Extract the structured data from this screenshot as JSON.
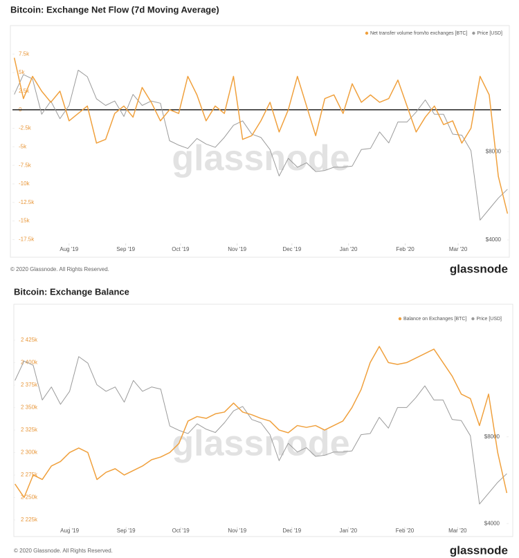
{
  "chart_data": [
    {
      "type": "line",
      "title": "Bitcoin: Exchange Net Flow (7d Moving Average)",
      "watermark": "glassnode",
      "footer": "© 2020 Glassnode. All Rights Reserved.",
      "logo": "glassnode",
      "x": [
        1,
        6,
        11,
        16,
        21,
        26,
        31,
        36,
        41,
        46,
        51,
        56,
        61,
        66,
        71,
        76,
        81,
        86,
        91,
        96,
        101,
        106,
        111,
        116,
        121,
        126,
        131,
        136,
        141,
        146,
        151,
        156,
        161,
        166,
        171,
        176,
        181,
        186,
        191,
        196,
        201,
        206,
        211,
        216,
        221,
        226,
        231,
        236,
        241,
        246,
        251,
        256,
        261,
        266,
        271
      ],
      "xlim": [
        0,
        272
      ],
      "xticks": [
        {
          "value": 31,
          "label": "Aug '19"
        },
        {
          "value": 62,
          "label": "Sep '19"
        },
        {
          "value": 92,
          "label": "Oct '19"
        },
        {
          "value": 123,
          "label": "Nov '19"
        },
        {
          "value": 153,
          "label": "Dec '19"
        },
        {
          "value": 184,
          "label": "Jan '20"
        },
        {
          "value": 215,
          "label": "Feb '20"
        },
        {
          "value": 244,
          "label": "Mar '20"
        }
      ],
      "ylim": [
        -18300,
        9200
      ],
      "yticks": [
        {
          "value": 7500,
          "label": "7.5k"
        },
        {
          "value": 5000,
          "label": "5k"
        },
        {
          "value": 2500,
          "label": "2.5k"
        },
        0,
        {
          "value": -2500,
          "label": "-2.5k"
        },
        {
          "value": -5000,
          "label": "-5k"
        },
        {
          "value": -7500,
          "label": "-7.5k"
        },
        {
          "value": -10000,
          "label": "-10k"
        },
        {
          "value": -12500,
          "label": "-12.5k"
        },
        {
          "value": -15000,
          "label": "-15k"
        },
        {
          "value": -17500,
          "label": "-17.5k"
        }
      ],
      "y2lim": [
        3750,
        13000
      ],
      "y2ticks": [
        {
          "value": 8000,
          "label": "$8000"
        },
        {
          "value": 4000,
          "label": "$4000"
        }
      ],
      "legend": "top-right",
      "series": [
        {
          "name": "Net transfer volume from/to exchanges [BTC]",
          "color": "#f0a03c",
          "values": [
            7000,
            1500,
            4500,
            2500,
            1000,
            2500,
            -1500,
            -500,
            500,
            -4500,
            -4000,
            -500,
            500,
            -1000,
            3000,
            1000,
            -1500,
            0,
            -500,
            4500,
            2000,
            -1500,
            500,
            -500,
            4500,
            -4000,
            -3500,
            -1500,
            1000,
            -3000,
            0,
            4500,
            500,
            -3500,
            1500,
            2000,
            -500,
            3500,
            1000,
            2000,
            1000,
            1500,
            4000,
            500,
            -3000,
            -1000,
            500,
            -2000,
            -1500,
            -4500,
            -2500,
            4500,
            2000,
            -9000,
            -14000
          ]
        },
        {
          "name": "Price [USD]",
          "color": "#9a9a9a",
          "axis": "y2",
          "values": [
            10600,
            11500,
            11300,
            9700,
            10300,
            9500,
            10100,
            11700,
            11400,
            10400,
            10100,
            10300,
            9600,
            10600,
            10100,
            10300,
            10200,
            8500,
            8300,
            8150,
            8600,
            8350,
            8200,
            8650,
            9200,
            9400,
            8800,
            8650,
            8100,
            6900,
            7700,
            7300,
            7500,
            7100,
            7150,
            7300,
            7300,
            7350,
            8100,
            8150,
            8900,
            8400,
            9350,
            9350,
            9800,
            10350,
            9700,
            9700,
            8800,
            8750,
            8050,
            4900,
            5400,
            5900,
            6300
          ]
        }
      ]
    },
    {
      "type": "line",
      "title": "Bitcoin: Exchange Balance",
      "watermark": "glassnode",
      "footer": "© 2020 Glassnode. All Rights Reserved.",
      "logo": "glassnode",
      "x": [
        1,
        6,
        11,
        16,
        21,
        26,
        31,
        36,
        41,
        46,
        51,
        56,
        61,
        66,
        71,
        76,
        81,
        86,
        91,
        96,
        101,
        106,
        111,
        116,
        121,
        126,
        131,
        136,
        141,
        146,
        151,
        156,
        161,
        166,
        171,
        176,
        181,
        186,
        191,
        196,
        201,
        206,
        211,
        216,
        221,
        226,
        231,
        236,
        241,
        246,
        251,
        256,
        261,
        266,
        271
      ],
      "xlim": [
        0,
        272
      ],
      "xticks": [
        {
          "value": 31,
          "label": "Aug '19"
        },
        {
          "value": 62,
          "label": "Sep '19"
        },
        {
          "value": 92,
          "label": "Oct '19"
        },
        {
          "value": 123,
          "label": "Nov '19"
        },
        {
          "value": 153,
          "label": "Dec '19"
        },
        {
          "value": 184,
          "label": "Jan '20"
        },
        {
          "value": 215,
          "label": "Feb '20"
        },
        {
          "value": 244,
          "label": "Mar '20"
        }
      ],
      "ylim": [
        2215000,
        2438000
      ],
      "yticks": [
        {
          "value": 2425000,
          "label": "2 425k"
        },
        {
          "value": 2400000,
          "label": "2 400k"
        },
        {
          "value": 2375000,
          "label": "2 375k"
        },
        {
          "value": 2350000,
          "label": "2 350k"
        },
        {
          "value": 2325000,
          "label": "2 325k"
        },
        {
          "value": 2300000,
          "label": "2 300k"
        },
        {
          "value": 2275000,
          "label": "2 275k"
        },
        {
          "value": 2250000,
          "label": "2 250k"
        },
        {
          "value": 2225000,
          "label": "2 225k"
        }
      ],
      "y2lim": [
        3750,
        13000
      ],
      "y2ticks": [
        {
          "value": 8000,
          "label": "$8000"
        },
        {
          "value": 4000,
          "label": "$4000"
        }
      ],
      "legend": "top-right",
      "series": [
        {
          "name": "Balance on Exchanges [BTC]",
          "color": "#f0a03c",
          "values": [
            2265000,
            2250000,
            2275000,
            2270000,
            2285000,
            2290000,
            2300000,
            2305000,
            2300000,
            2270000,
            2278000,
            2282000,
            2275000,
            2280000,
            2285000,
            2292000,
            2295000,
            2300000,
            2310000,
            2335000,
            2340000,
            2338000,
            2343000,
            2345000,
            2355000,
            2345000,
            2342000,
            2338000,
            2335000,
            2325000,
            2322000,
            2330000,
            2328000,
            2330000,
            2325000,
            2330000,
            2335000,
            2350000,
            2370000,
            2400000,
            2418000,
            2400000,
            2398000,
            2400000,
            2405000,
            2410000,
            2415000,
            2400000,
            2385000,
            2365000,
            2360000,
            2330000,
            2365000,
            2300000,
            2255000
          ]
        },
        {
          "name": "Price [USD]",
          "color": "#9a9a9a",
          "axis": "y2",
          "values": [
            10600,
            11500,
            11300,
            9700,
            10300,
            9500,
            10100,
            11700,
            11400,
            10400,
            10100,
            10300,
            9600,
            10600,
            10100,
            10300,
            10200,
            8500,
            8300,
            8150,
            8600,
            8350,
            8200,
            8650,
            9200,
            9400,
            8800,
            8650,
            8100,
            6900,
            7700,
            7300,
            7500,
            7100,
            7150,
            7300,
            7300,
            7350,
            8100,
            8150,
            8900,
            8400,
            9350,
            9350,
            9800,
            10350,
            9700,
            9700,
            8800,
            8750,
            8050,
            4900,
            5400,
            5900,
            6300
          ]
        }
      ]
    }
  ]
}
